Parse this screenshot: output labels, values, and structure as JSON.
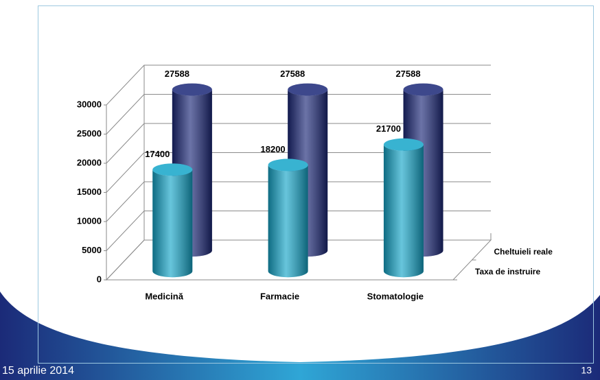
{
  "chart_data": {
    "type": "bar",
    "categories": [
      "Medicină",
      "Farmacie",
      "Stomatologie"
    ],
    "series": [
      {
        "name": "Cheltuieli reale",
        "color": "#1c2878",
        "values": [
          27588,
          27588,
          27588
        ]
      },
      {
        "name": "Taxa de instruire",
        "color": "#16a6c9",
        "values": [
          17400,
          18200,
          21700
        ]
      }
    ],
    "ylim": [
      0,
      30000
    ],
    "yticks": [
      0,
      5000,
      10000,
      15000,
      20000,
      25000,
      30000
    ],
    "grid": true
  },
  "footer": {
    "date": "15 aprilie 2014",
    "page": "13"
  }
}
